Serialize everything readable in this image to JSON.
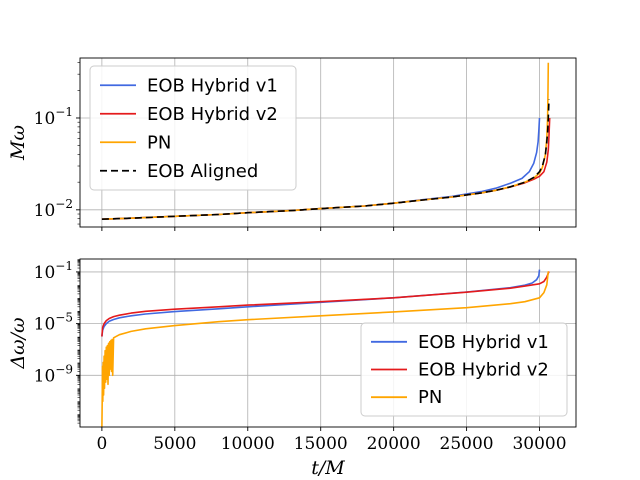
{
  "chart_data": [
    {
      "type": "line",
      "panel": "top",
      "yscale": "log",
      "ylabel": "Mω",
      "xlabel": "",
      "xlim": [
        -1500,
        32500
      ],
      "ylim": [
        0.0065,
        0.45
      ],
      "xticks": [
        0,
        5000,
        10000,
        15000,
        20000,
        25000,
        30000
      ],
      "yticks": [
        {
          "value": 0.01,
          "base": "10",
          "exp": "−2"
        },
        {
          "value": 0.1,
          "base": "10",
          "exp": "−1"
        }
      ],
      "grid": true,
      "legend": "top-left",
      "series": [
        {
          "name": "EOB Hybrid v1",
          "color": "#4169e1",
          "dash": "",
          "x": [
            0,
            2000,
            5000,
            8000,
            10000,
            13000,
            15000,
            18000,
            20000,
            22000,
            24000,
            26000,
            27000,
            28000,
            28800,
            29300,
            29600,
            29800,
            29900,
            29950,
            30000
          ],
          "y": [
            0.0079,
            0.0081,
            0.0085,
            0.0089,
            0.0093,
            0.0098,
            0.0103,
            0.011,
            0.0118,
            0.0129,
            0.014,
            0.0158,
            0.0172,
            0.0195,
            0.022,
            0.026,
            0.032,
            0.042,
            0.055,
            0.072,
            0.1
          ]
        },
        {
          "name": "EOB Hybrid v2",
          "color": "#e41a1c",
          "dash": "",
          "x": [
            0,
            2000,
            5000,
            8000,
            10000,
            13000,
            15000,
            18000,
            20000,
            22000,
            24000,
            26000,
            27000,
            28000,
            29000,
            29600,
            30000,
            30300,
            30500,
            30600,
            30650,
            30700
          ],
          "y": [
            0.0079,
            0.0081,
            0.0085,
            0.0089,
            0.0093,
            0.0098,
            0.0103,
            0.011,
            0.0118,
            0.0128,
            0.0138,
            0.0153,
            0.0163,
            0.0177,
            0.0197,
            0.0215,
            0.0232,
            0.026,
            0.033,
            0.045,
            0.065,
            0.1
          ]
        },
        {
          "name": "PN",
          "color": "#ffa500",
          "dash": "",
          "x": [
            0,
            2000,
            5000,
            8000,
            10000,
            13000,
            15000,
            18000,
            20000,
            22000,
            24000,
            26000,
            27000,
            28000,
            29000,
            29600,
            30000,
            30200,
            30400,
            30500,
            30550,
            30580,
            30600
          ],
          "y": [
            0.0079,
            0.0081,
            0.0085,
            0.0089,
            0.0093,
            0.0098,
            0.0103,
            0.011,
            0.0118,
            0.0128,
            0.0138,
            0.0153,
            0.0163,
            0.0178,
            0.02,
            0.0222,
            0.025,
            0.029,
            0.04,
            0.06,
            0.1,
            0.2,
            0.4
          ]
        },
        {
          "name": "EOB Aligned",
          "color": "#000000",
          "dash": "7,4",
          "x": [
            0,
            2000,
            5000,
            8000,
            10000,
            13000,
            15000,
            18000,
            20000,
            22000,
            24000,
            26000,
            27000,
            28000,
            29000,
            29600,
            30000,
            30200,
            30400,
            30500,
            30550,
            30600,
            30650
          ],
          "y": [
            0.0079,
            0.0081,
            0.0085,
            0.0089,
            0.0093,
            0.0098,
            0.0103,
            0.011,
            0.0118,
            0.0128,
            0.0138,
            0.0153,
            0.0163,
            0.0178,
            0.02,
            0.0225,
            0.026,
            0.03,
            0.04,
            0.055,
            0.07,
            0.1,
            0.16
          ]
        }
      ]
    },
    {
      "type": "line",
      "panel": "bottom",
      "yscale": "log",
      "ylabel": "Δω/ω",
      "xlabel": "t/M",
      "xlim": [
        -1500,
        32500
      ],
      "ylim": [
        1e-13,
        1
      ],
      "xticks": [
        0,
        5000,
        10000,
        15000,
        20000,
        25000,
        30000
      ],
      "yticks": [
        {
          "value": 1e-09,
          "base": "10",
          "exp": "−9"
        },
        {
          "value": 1e-05,
          "base": "10",
          "exp": "−5"
        },
        {
          "value": 0.1,
          "base": "10",
          "exp": "−1"
        }
      ],
      "grid": true,
      "legend": "bottom-right",
      "series": [
        {
          "name": "EOB Hybrid v1",
          "color": "#4169e1",
          "dash": "",
          "x": [
            0,
            50,
            150,
            300,
            500,
            800,
            1200,
            2000,
            3000,
            5000,
            8000,
            10000,
            15000,
            20000,
            25000,
            28000,
            29000,
            29500,
            29800,
            29950,
            30000
          ],
          "y": [
            1e-06,
            3e-06,
            6e-06,
            1e-05,
            1.5e-05,
            2.1e-05,
            2.8e-05,
            4e-05,
            5.5e-05,
            8.5e-05,
            0.00014,
            0.0002,
            0.00045,
            0.001,
            0.0028,
            0.006,
            0.0095,
            0.014,
            0.025,
            0.05,
            0.15
          ]
        },
        {
          "name": "EOB Hybrid v2",
          "color": "#e41a1c",
          "dash": "",
          "x": [
            0,
            50,
            150,
            300,
            500,
            800,
            1200,
            2000,
            3000,
            5000,
            8000,
            10000,
            15000,
            20000,
            25000,
            28000,
            29000,
            30000,
            30300,
            30500,
            30650
          ],
          "y": [
            1e-06,
            5e-06,
            1e-05,
            1.7e-05,
            2.5e-05,
            3.5e-05,
            4.5e-05,
            6.5e-05,
            9e-05,
            0.00013,
            0.0002,
            0.00027,
            0.0005,
            0.001,
            0.0027,
            0.0055,
            0.008,
            0.012,
            0.018,
            0.04,
            0.11
          ]
        },
        {
          "name": "PN",
          "color": "#ffa500",
          "dash": "",
          "x": [
            0,
            20,
            40,
            60,
            90,
            120,
            150,
            180,
            220,
            260,
            300,
            340,
            380,
            420,
            460,
            500,
            540,
            580,
            620,
            660,
            700,
            740,
            800,
            1200,
            2000,
            3000,
            5000,
            8000,
            10000,
            15000,
            20000,
            25000,
            28000,
            29000,
            30000,
            30300,
            30500,
            30600
          ],
          "y": [
            1e-13,
            1e-11,
            5e-09,
            1e-11,
            1e-08,
            3e-11,
            3e-08,
            1e-10,
            8e-08,
            3e-10,
            1.5e-07,
            5e-10,
            2e-07,
            2e-10,
            3e-07,
            1e-09,
            4e-07,
            3e-09,
            5e-07,
            2e-09,
            6e-07,
            1e-09,
            8e-07,
            1.4e-06,
            2.5e-06,
            4e-06,
            7e-06,
            1.4e-05,
            2e-05,
            4e-05,
            8e-05,
            0.00017,
            0.00035,
            0.0005,
            0.001,
            0.0025,
            0.01,
            0.11
          ]
        }
      ]
    }
  ]
}
